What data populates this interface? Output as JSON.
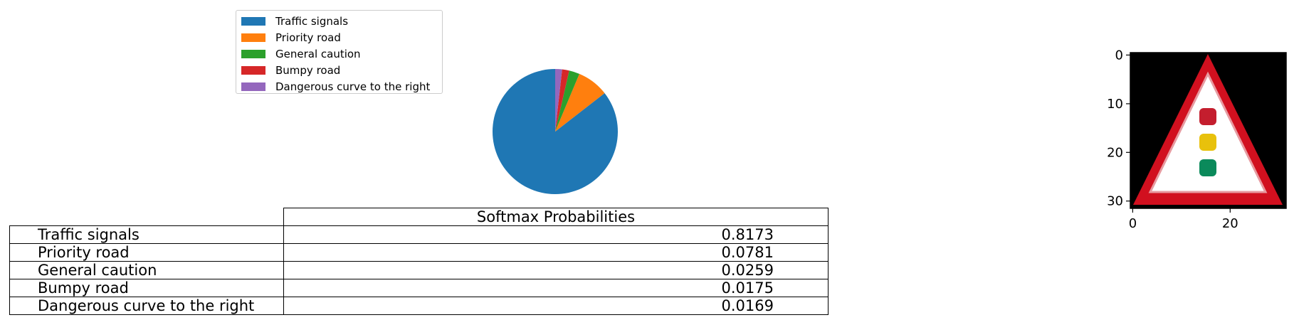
{
  "chart_data": [
    {
      "type": "pie",
      "legend_placement": "upper-left",
      "slices": [
        {
          "label": "Traffic signals",
          "value": 0.8173,
          "color": "#1f77b4"
        },
        {
          "label": "Priority road",
          "value": 0.0781,
          "color": "#ff7f0e"
        },
        {
          "label": "General caution",
          "value": 0.0259,
          "color": "#2ca02c"
        },
        {
          "label": "Bumpy road",
          "value": 0.0175,
          "color": "#d62728"
        },
        {
          "label": "Dangerous curve to the right",
          "value": 0.0169,
          "color": "#9467bd"
        }
      ]
    },
    {
      "type": "table",
      "column_header": "Softmax Probabilities",
      "rows": [
        {
          "label": "Traffic signals",
          "value": "0.8173"
        },
        {
          "label": "Priority road",
          "value": "0.0781"
        },
        {
          "label": "General caution",
          "value": "0.0259"
        },
        {
          "label": "Bumpy road",
          "value": "0.0175"
        },
        {
          "label": "Dangerous curve to the right",
          "value": "0.0169"
        }
      ]
    },
    {
      "type": "image",
      "subject": "traffic-signals warning sign",
      "x_ticks": [
        "0",
        "20"
      ],
      "y_ticks": [
        "0",
        "10",
        "20",
        "30"
      ],
      "xlim": [
        -0.5,
        31.5
      ],
      "ylim": [
        31.5,
        -0.5
      ]
    }
  ]
}
